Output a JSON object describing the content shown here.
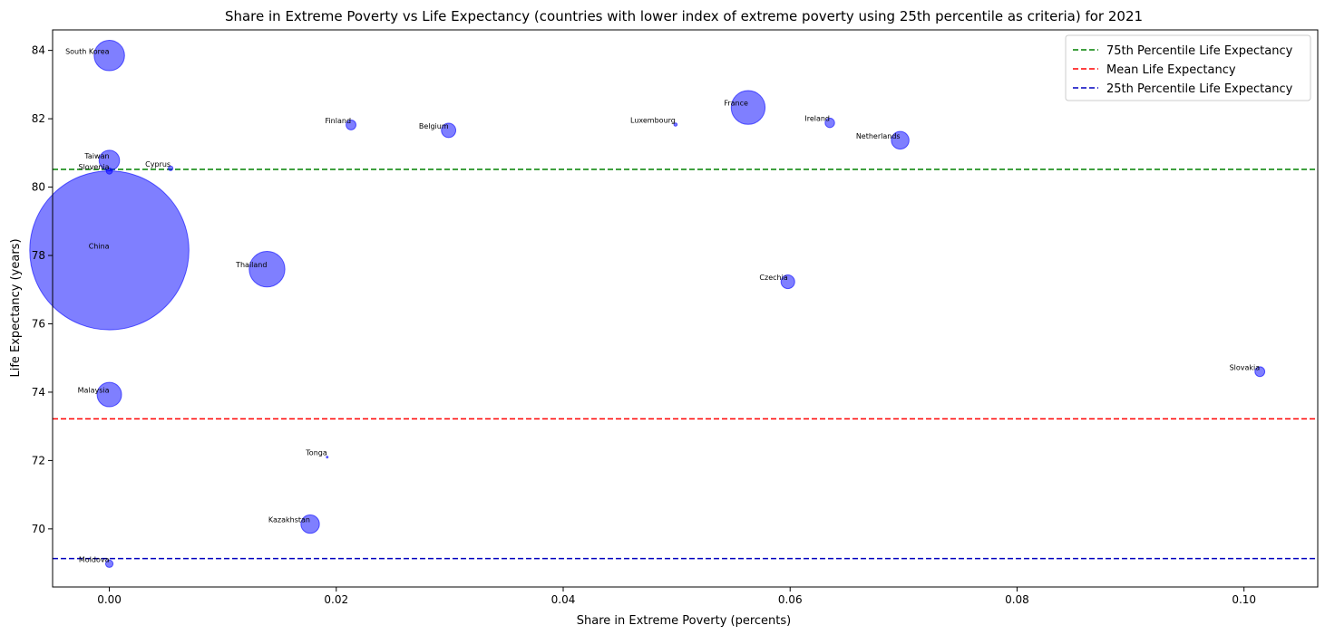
{
  "chart_data": {
    "type": "scatter",
    "title": "Share in Extreme Poverty vs Life Expectancy (countries with lower index of extreme poverty using 25th percentile as criteria) for 2021",
    "xlabel": "Share in Extreme Poverty (percents)",
    "ylabel": "Life Expectancy (years)",
    "xlim": [
      -0.005,
      0.1065
    ],
    "ylim": [
      68.3,
      84.6
    ],
    "x_ticks": [
      "0.00",
      "0.02",
      "0.04",
      "0.06",
      "0.08",
      "0.10"
    ],
    "y_ticks": [
      "70",
      "72",
      "74",
      "76",
      "78",
      "80",
      "82",
      "84"
    ],
    "x_tick_values": [
      0,
      0.02,
      0.04,
      0.06,
      0.08,
      0.1
    ],
    "y_tick_values": [
      70,
      72,
      74,
      76,
      78,
      80,
      82,
      84
    ],
    "grid": false,
    "legend_position": "top-right",
    "marker_color": "#0000ff",
    "points": [
      {
        "label": "South Korea",
        "x": 0.0,
        "y": 83.85,
        "population_m": 52
      },
      {
        "label": "Taiwan",
        "x": 0.0,
        "y": 80.78,
        "population_m": 23.5
      },
      {
        "label": "Slovenia",
        "x": 0.0,
        "y": 80.47,
        "population_m": 2.1
      },
      {
        "label": "China",
        "x": 0.0,
        "y": 78.15,
        "population_m": 1426
      },
      {
        "label": "Malaysia",
        "x": 0.0,
        "y": 73.93,
        "population_m": 33.6
      },
      {
        "label": "Moldova",
        "x": 0.0,
        "y": 68.98,
        "population_m": 3.1
      },
      {
        "label": "Cyprus",
        "x": 0.0054,
        "y": 80.55,
        "population_m": 1.2
      },
      {
        "label": "Thailand",
        "x": 0.0139,
        "y": 77.6,
        "population_m": 71.6
      },
      {
        "label": "Kazakhstan",
        "x": 0.0177,
        "y": 70.14,
        "population_m": 19.2
      },
      {
        "label": "Tonga",
        "x": 0.0192,
        "y": 72.1,
        "population_m": 0.1
      },
      {
        "label": "Finland",
        "x": 0.0213,
        "y": 81.82,
        "population_m": 5.5
      },
      {
        "label": "Belgium",
        "x": 0.0299,
        "y": 81.66,
        "population_m": 11.6
      },
      {
        "label": "Luxembourg",
        "x": 0.0499,
        "y": 81.83,
        "population_m": 0.6
      },
      {
        "label": "France",
        "x": 0.0563,
        "y": 82.33,
        "population_m": 64.5
      },
      {
        "label": "Czechia",
        "x": 0.0598,
        "y": 77.23,
        "population_m": 10.5
      },
      {
        "label": "Ireland",
        "x": 0.0635,
        "y": 81.88,
        "population_m": 5.0
      },
      {
        "label": "Netherlands",
        "x": 0.0697,
        "y": 81.37,
        "population_m": 17.5
      },
      {
        "label": "Slovakia",
        "x": 0.1014,
        "y": 74.6,
        "population_m": 5.4
      }
    ],
    "reference_lines": [
      {
        "name": "75th Percentile Life Expectancy",
        "y": 80.52,
        "color": "#008000"
      },
      {
        "name": "Mean Life Expectancy",
        "y": 73.22,
        "color": "#ff0000"
      },
      {
        "name": "25th Percentile Life Expectancy",
        "y": 69.13,
        "color": "#0000bf"
      }
    ]
  }
}
